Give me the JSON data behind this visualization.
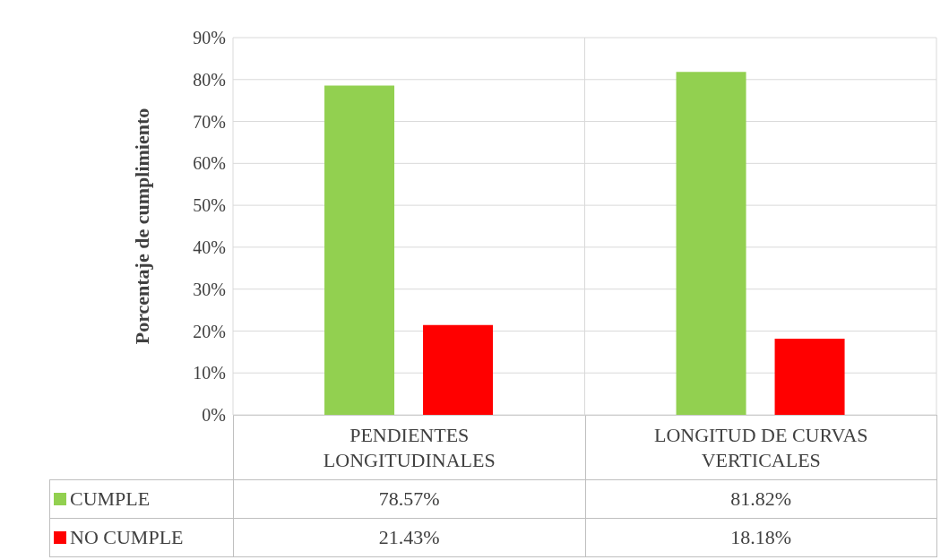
{
  "chart_data": {
    "type": "bar",
    "ylabel": "Porcentaje  de cumplimiento",
    "categories": [
      "PENDIENTES LONGITUDINALES",
      "LONGITUD DE CURVAS VERTICALES"
    ],
    "series": [
      {
        "name": "CUMPLE",
        "color": "#92d050",
        "values": [
          78.57,
          81.82
        ],
        "value_labels": [
          "78.57%",
          "81.82%"
        ]
      },
      {
        "name": "NO CUMPLE",
        "color": "#ff0000",
        "values": [
          21.43,
          18.18
        ],
        "value_labels": [
          "21.43%",
          "18.18%"
        ]
      }
    ],
    "ylim": [
      0,
      90
    ],
    "yticks": [
      {
        "value": 0,
        "label": "0%"
      },
      {
        "value": 10,
        "label": "10%"
      },
      {
        "value": 20,
        "label": "20%"
      },
      {
        "value": 30,
        "label": "30%"
      },
      {
        "value": 40,
        "label": "40%"
      },
      {
        "value": 50,
        "label": "50%"
      },
      {
        "value": 60,
        "label": "60%"
      },
      {
        "value": 70,
        "label": "70%"
      },
      {
        "value": 80,
        "label": "80%"
      },
      {
        "value": 90,
        "label": "90%"
      }
    ],
    "grid": true,
    "legend": "bottom"
  }
}
